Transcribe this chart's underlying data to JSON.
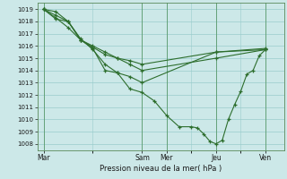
{
  "background_color": "#cce8e8",
  "grid_color": "#99cccc",
  "line_color": "#2d6e2d",
  "marker_color": "#2d6e2d",
  "ylim": [
    1007.5,
    1019.5
  ],
  "yticks": [
    1008,
    1009,
    1010,
    1011,
    1012,
    1013,
    1014,
    1015,
    1016,
    1017,
    1018,
    1019
  ],
  "xtick_labels": [
    "Mar",
    "Sam",
    "Mer",
    "Jeu",
    "Ven"
  ],
  "xtick_positions": [
    0,
    8,
    10,
    14,
    18
  ],
  "xlabel": "Pression niveau de la mer( hPa )",
  "series": [
    [
      1019.0,
      1018.8,
      1018.0,
      1016.5,
      1015.9,
      1015.3,
      1015.0,
      1014.5,
      1014.0,
      1015.0,
      1015.7
    ],
    [
      1019.0,
      1018.5,
      1018.0,
      1016.6,
      1015.7,
      1014.5,
      1013.8,
      1013.5,
      1013.0,
      1015.5,
      1015.8
    ],
    [
      1019.0,
      1018.2,
      1018.0,
      1016.5,
      1015.8,
      1014.0,
      1013.8,
      1012.5,
      1012.2,
      1011.5,
      1010.3,
      1009.4,
      1009.4,
      1009.3,
      1008.8,
      1008.2,
      1008.0,
      1008.3,
      1010.0,
      1011.2,
      1012.3,
      1013.7,
      1014.0,
      1015.2,
      1015.7
    ],
    [
      1019.0,
      1018.3,
      1017.5,
      1016.5,
      1016.0,
      1015.5,
      1015.0,
      1014.8,
      1014.5,
      1015.5,
      1015.7
    ]
  ],
  "series_x": [
    [
      0,
      1,
      2,
      3,
      4,
      5,
      6,
      7,
      8,
      14,
      18
    ],
    [
      0,
      1,
      2,
      3,
      4,
      5,
      6,
      7,
      8,
      14,
      18
    ],
    [
      0,
      1,
      2,
      3,
      4,
      5,
      6,
      7,
      8,
      9,
      10,
      11,
      12,
      12.5,
      13,
      13.5,
      14,
      14.5,
      15,
      15.5,
      16,
      16.5,
      17,
      17.5,
      18
    ],
    [
      0,
      1,
      2,
      3,
      4,
      5,
      6,
      7,
      8,
      14,
      18
    ]
  ],
  "xlim": [
    -0.5,
    19.5
  ],
  "vline_positions": [
    0,
    8,
    10,
    14,
    18
  ],
  "figsize": [
    3.2,
    2.0
  ],
  "dpi": 100
}
